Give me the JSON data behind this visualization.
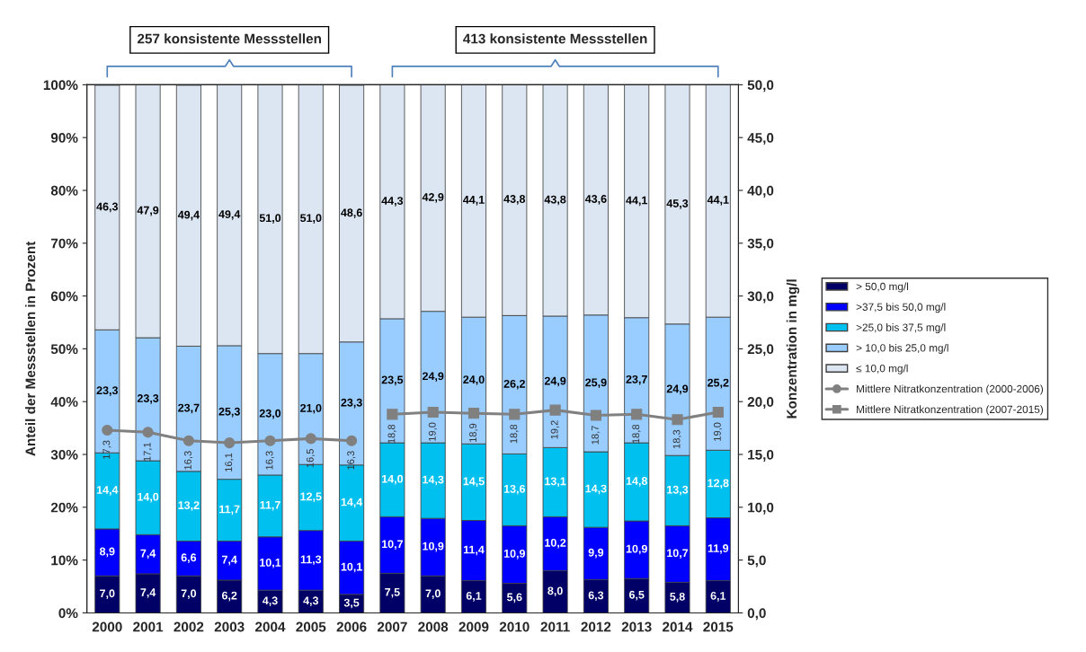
{
  "chart_data": {
    "type": "bar",
    "stacked": true,
    "categories": [
      "2000",
      "2001",
      "2002",
      "2003",
      "2004",
      "2005",
      "2006",
      "2007",
      "2008",
      "2009",
      "2010",
      "2011",
      "2012",
      "2013",
      "2014",
      "2015"
    ],
    "ylabel": "Anteil der Messstellen in Prozent",
    "y2label": "Konzentration in mg/l",
    "ylim": [
      0,
      100
    ],
    "yticks": [
      {
        "value": 0,
        "label": "0%"
      },
      {
        "value": 10,
        "label": "10%"
      },
      {
        "value": 20,
        "label": "20%"
      },
      {
        "value": 30,
        "label": "30%"
      },
      {
        "value": 40,
        "label": "40%"
      },
      {
        "value": 50,
        "label": "50%"
      },
      {
        "value": 60,
        "label": "60%"
      },
      {
        "value": 70,
        "label": "70%"
      },
      {
        "value": 80,
        "label": "80%"
      },
      {
        "value": 90,
        "label": "90%"
      },
      {
        "value": 100,
        "label": "100%"
      }
    ],
    "y2lim": [
      0,
      50
    ],
    "y2ticks": [
      {
        "value": 0,
        "label": "0,0"
      },
      {
        "value": 5,
        "label": "5,0"
      },
      {
        "value": 10,
        "label": "10,0"
      },
      {
        "value": 15,
        "label": "15,0"
      },
      {
        "value": 20,
        "label": "20,0"
      },
      {
        "value": 25,
        "label": "25,0"
      },
      {
        "value": 30,
        "label": "30,0"
      },
      {
        "value": 35,
        "label": "35,0"
      },
      {
        "value": 40,
        "label": "40,0"
      },
      {
        "value": 45,
        "label": "45,0"
      },
      {
        "value": 50,
        "label": "50,0"
      }
    ],
    "legend": "right",
    "grid": false,
    "annotations": [
      "257 konsistente Messstellen",
      "413 konsistente Messstellen"
    ],
    "series": [
      {
        "name": "> 50,0 mg/l",
        "color": "#000066",
        "values": [
          7.0,
          7.4,
          7.0,
          6.2,
          4.3,
          4.3,
          3.5,
          7.5,
          7.0,
          6.1,
          5.6,
          8.0,
          6.3,
          6.5,
          5.8,
          6.1
        ],
        "value_labels": [
          "7,0",
          "7,4",
          "7,0",
          "6,2",
          "4,3",
          "4,3",
          "3,5",
          "7,5",
          "7,0",
          "6,1",
          "5,6",
          "8,0",
          "6,3",
          "6,5",
          "5,8",
          "6,1"
        ]
      },
      {
        "name": ">37,5 bis 50,0 mg/l",
        "color": "#0000ff",
        "values": [
          8.9,
          7.4,
          6.6,
          7.4,
          10.1,
          11.3,
          10.1,
          10.7,
          10.9,
          11.4,
          10.9,
          10.2,
          9.9,
          10.9,
          10.7,
          11.9
        ],
        "value_labels": [
          "8,9",
          "7,4",
          "6,6",
          "7,4",
          "10,1",
          "11,3",
          "10,1",
          "10,7",
          "10,9",
          "11,4",
          "10,9",
          "10,2",
          "9,9",
          "10,9",
          "10,7",
          "11,9"
        ]
      },
      {
        "name": ">25,0 bis 37,5 mg/l",
        "color": "#00c0f0",
        "values": [
          14.4,
          14.0,
          13.2,
          11.7,
          11.7,
          12.5,
          14.4,
          14.0,
          14.3,
          14.5,
          13.6,
          13.1,
          14.3,
          14.8,
          13.3,
          12.8
        ],
        "value_labels": [
          "14,4",
          "14,0",
          "13,2",
          "11,7",
          "11,7",
          "12,5",
          "14,4",
          "14,0",
          "14,3",
          "14,5",
          "13,6",
          "13,1",
          "14,3",
          "14,8",
          "13,3",
          "12,8"
        ]
      },
      {
        "name": "> 10,0 bis 25,0 mg/l",
        "color": "#99ccff",
        "values": [
          23.3,
          23.3,
          23.7,
          25.3,
          23.0,
          21.0,
          23.3,
          23.5,
          24.9,
          24.0,
          26.2,
          24.9,
          25.9,
          23.7,
          24.9,
          25.2
        ],
        "value_labels": [
          "23,3",
          "23,3",
          "23,7",
          "25,3",
          "23,0",
          "21,0",
          "23,3",
          "23,5",
          "24,9",
          "24,0",
          "26,2",
          "24,9",
          "25,9",
          "23,7",
          "24,9",
          "25,2"
        ]
      },
      {
        "name": "≤ 10,0 mg/l",
        "color": "#dce6f2",
        "values": [
          46.3,
          47.9,
          49.4,
          49.4,
          51.0,
          51.0,
          48.6,
          44.3,
          42.9,
          44.1,
          43.8,
          43.8,
          43.6,
          44.1,
          45.3,
          44.1
        ],
        "value_labels": [
          "46,3",
          "47,9",
          "49,4",
          "49,4",
          "51,0",
          "51,0",
          "48,6",
          "44,3",
          "42,9",
          "44,1",
          "43,8",
          "43,8",
          "43,6",
          "44,1",
          "45,3",
          "44,1"
        ]
      },
      {
        "name": "Mittlere Nitratkonzentration (2000-2006)",
        "type": "line",
        "axis": "y2",
        "color": "#808080",
        "marker": "circle",
        "values": [
          17.3,
          17.1,
          16.3,
          16.1,
          16.3,
          16.5,
          16.3,
          null,
          null,
          null,
          null,
          null,
          null,
          null,
          null,
          null
        ],
        "value_labels": [
          "17,3",
          "17,1",
          "16,3",
          "16,1",
          "16,3",
          "16,5",
          "16,3",
          null,
          null,
          null,
          null,
          null,
          null,
          null,
          null,
          null
        ]
      },
      {
        "name": "Mittlere Nitratkonzentration (2007-2015)",
        "type": "line",
        "axis": "y2",
        "color": "#808080",
        "marker": "square",
        "values": [
          null,
          null,
          null,
          null,
          null,
          null,
          null,
          18.8,
          19.0,
          18.9,
          18.8,
          19.2,
          18.7,
          18.8,
          18.3,
          19.0
        ],
        "value_labels": [
          null,
          null,
          null,
          null,
          null,
          null,
          null,
          "18,8",
          "19,0",
          "18,9",
          "18,8",
          "19,2",
          "18,7",
          "18,8",
          "18,3",
          "19,0"
        ]
      }
    ]
  }
}
